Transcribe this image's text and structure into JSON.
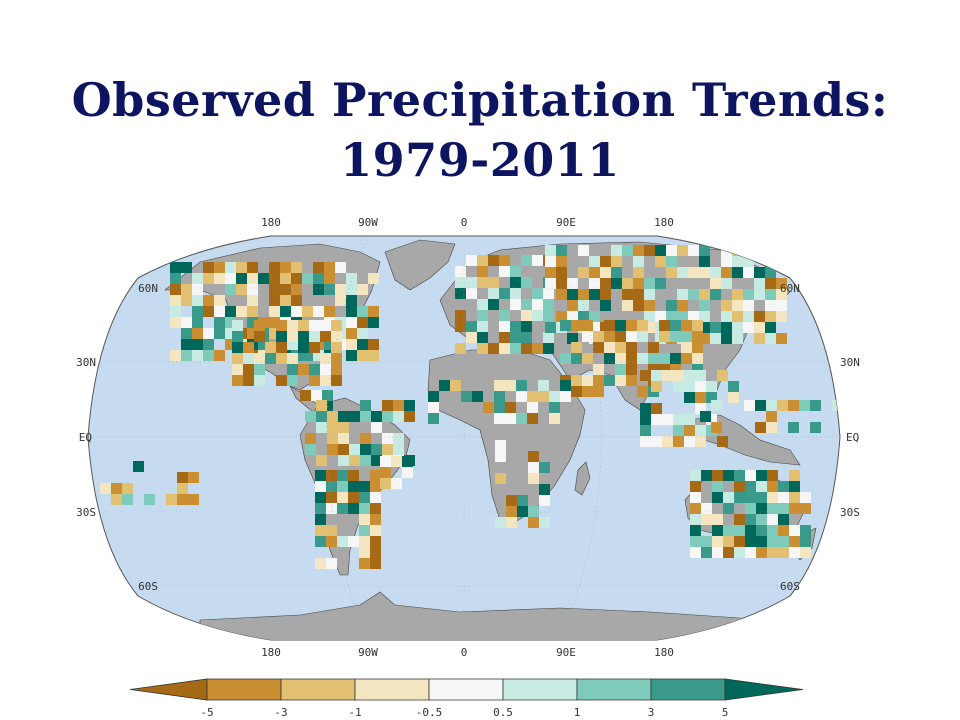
{
  "title": {
    "line1": "Observed Precipitation Trends:",
    "line2": "1979-2011"
  },
  "map": {
    "projection": "Robinson",
    "ocean_color": "#c6dbef",
    "land_color": "#a8a8a8",
    "lon_ticks_top": [
      "180",
      "90W",
      "0",
      "90E",
      "180"
    ],
    "lon_ticks_bottom": [
      "180",
      "90W",
      "0",
      "90E",
      "180"
    ],
    "lat_ticks_left": [
      "60N",
      "30N",
      "EQ",
      "30S",
      "60S"
    ],
    "lat_ticks_right": [
      "60N",
      "30N",
      "EQ",
      "30S",
      "60S"
    ]
  },
  "colorbar": {
    "labels": [
      "-5",
      "-3",
      "-1",
      "-0.5",
      "0.5",
      "1",
      "3",
      "5"
    ],
    "colors": [
      "#a66a16",
      "#c98f32",
      "#e2c072",
      "#f5e6c2",
      "#f6f6f6",
      "#c7ebe2",
      "#7fcbbb",
      "#399a8c",
      "#00675b"
    ]
  },
  "chart_data": {
    "type": "heatmap",
    "title": "Observed Precipitation Trends: 1979-2011",
    "xlabel": "",
    "ylabel": "",
    "legend": "bottom",
    "bins": [
      {
        "range": "< -5",
        "color": "#a66a16"
      },
      {
        "range": "-5 to -3",
        "color": "#c98f32"
      },
      {
        "range": "-3 to -1",
        "color": "#e2c072"
      },
      {
        "range": "-1 to -0.5",
        "color": "#f5e6c2"
      },
      {
        "range": "-0.5 to 0.5",
        "color": "#f6f6f6"
      },
      {
        "range": "0.5 to 1",
        "color": "#c7ebe2"
      },
      {
        "range": "1 to 3",
        "color": "#7fcbbb"
      },
      {
        "range": "3 to 5",
        "color": "#399a8c"
      },
      {
        "range": "> 5",
        "color": "#00675b"
      }
    ]
  }
}
